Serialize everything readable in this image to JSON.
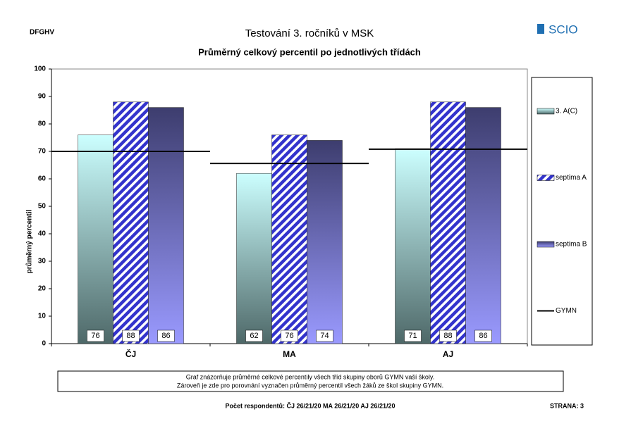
{
  "header": {
    "code": "DFGHV",
    "logo": "SCIO"
  },
  "chart_data": {
    "type": "bar",
    "title": "Testování 3. ročníků v MSK",
    "subtitle": "Průměrný celkový percentil po jednotlivých třídách",
    "y_label": "průměrný percentil",
    "categories": [
      "ČJ",
      "MA",
      "AJ"
    ],
    "series": [
      {
        "name": "3. A(C)",
        "style": "gradient",
        "color": "#ccffff",
        "color_end": "#4e6868",
        "values": [
          76,
          62,
          71
        ]
      },
      {
        "name": "septima A",
        "style": "hatch",
        "color": "#3333cc",
        "values": [
          88,
          76,
          88
        ]
      },
      {
        "name": "septima B",
        "style": "gradient",
        "color": "#3d3d6e",
        "color_end": "#9a9aff",
        "values": [
          86,
          74,
          86
        ]
      },
      {
        "name": "GYMN",
        "style": "line",
        "color": "#000000",
        "values": [
          70,
          65.6,
          70.8
        ]
      }
    ],
    "ylim": [
      0,
      100
    ],
    "yticks": [
      0,
      10,
      20,
      30,
      40,
      50,
      60,
      70,
      80,
      90,
      100
    ],
    "legend": "right",
    "grid": false,
    "note": [
      "Graf znázorňuje průměrné celkové percentily všech tříd skupiny oborů GYMN vaší školy.",
      "Zároveň je zde pro porovnání vyznačen průměrný percentil všech žáků ze škol skupiny GYMN."
    ]
  },
  "footer": {
    "respondents": "Počet respondentů: ČJ 26/21/20  MA 26/21/20  AJ 26/21/20",
    "page": "STRANA: 3"
  }
}
